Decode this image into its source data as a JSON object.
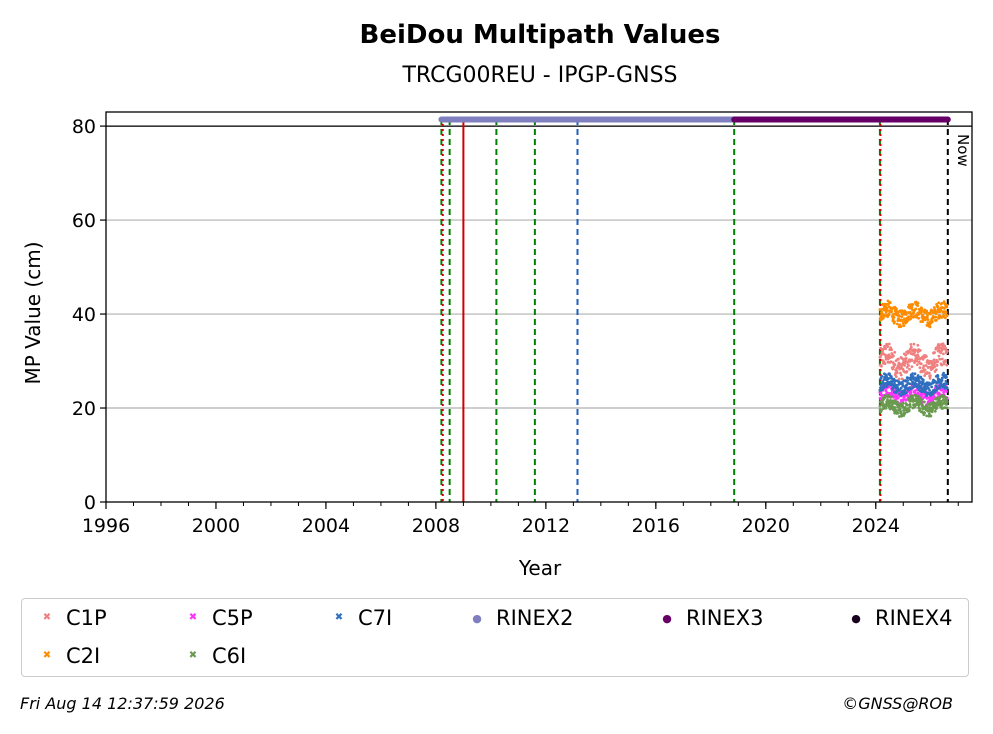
{
  "chart_data": {
    "type": "scatter",
    "title": "BeiDou Multipath Values",
    "subtitle": "TRCG00REU - IPGP-GNSS",
    "xlabel": "Year",
    "ylabel": "MP Value (cm)",
    "xlim": [
      1996,
      2027.5
    ],
    "ylim": [
      0,
      83
    ],
    "x_ticks": [
      "1996",
      "2000",
      "2004",
      "2008",
      "2012",
      "2016",
      "2020",
      "2024"
    ],
    "y_ticks": [
      "0",
      "20",
      "40",
      "60",
      "80"
    ],
    "grid": "horizontal",
    "reference_line_y": 80,
    "now_label": "Now",
    "now_x": 2026.62,
    "event_lines": [
      {
        "x": 2008.2,
        "color": "#008000",
        "style": "dashed"
      },
      {
        "x": 2008.25,
        "color": "#d00000",
        "style": "dotted"
      },
      {
        "x": 2008.5,
        "color": "#008000",
        "style": "dashed"
      },
      {
        "x": 2009.0,
        "color": "#d00000",
        "style": "solid"
      },
      {
        "x": 2010.2,
        "color": "#008000",
        "style": "dashed"
      },
      {
        "x": 2011.6,
        "color": "#008000",
        "style": "dashed"
      },
      {
        "x": 2013.15,
        "color": "#1f5fbf",
        "style": "dashed"
      },
      {
        "x": 2018.85,
        "color": "#008000",
        "style": "dashed"
      },
      {
        "x": 2024.15,
        "color": "#008000",
        "style": "dashed"
      },
      {
        "x": 2024.17,
        "color": "#d00000",
        "style": "dotted"
      }
    ],
    "rinex_bars": [
      {
        "name": "RINEX2",
        "start": 2008.2,
        "end": 2018.85,
        "color": "#7f7fbf"
      },
      {
        "name": "RINEX3",
        "start": 2018.85,
        "end": 2026.62,
        "color": "#660066"
      }
    ],
    "series": [
      {
        "name": "C1P",
        "color": "#f08080",
        "x_start": 2024.15,
        "x_end": 2026.6,
        "mean": 30,
        "spread": 2.5
      },
      {
        "name": "C2I",
        "color": "#ff8c00",
        "x_start": 2024.15,
        "x_end": 2026.6,
        "mean": 40,
        "spread": 1.8
      },
      {
        "name": "C5P",
        "color": "#ff33ff",
        "x_start": 2024.15,
        "x_end": 2026.6,
        "mean": 23,
        "spread": 1.5
      },
      {
        "name": "C6I",
        "color": "#6a9a50",
        "x_start": 2024.15,
        "x_end": 2026.6,
        "mean": 20.5,
        "spread": 1.5
      },
      {
        "name": "C7I",
        "color": "#2f6fbf",
        "x_start": 2024.15,
        "x_end": 2026.6,
        "mean": 25,
        "spread": 1.6
      }
    ]
  },
  "legend": {
    "items": [
      {
        "label": "C1P",
        "color": "#f08080",
        "marker": "x"
      },
      {
        "label": "C5P",
        "color": "#ff33ff",
        "marker": "x"
      },
      {
        "label": "C7I",
        "color": "#2f6fbf",
        "marker": "x"
      },
      {
        "label": "RINEX2",
        "color": "#7f7fbf",
        "marker": "dot"
      },
      {
        "label": "RINEX3",
        "color": "#660066",
        "marker": "dot"
      },
      {
        "label": "RINEX4",
        "color": "#1a0020",
        "marker": "dot"
      },
      {
        "label": "C2I",
        "color": "#ff8c00",
        "marker": "x"
      },
      {
        "label": "C6I",
        "color": "#6a9a50",
        "marker": "x"
      }
    ]
  },
  "footer": {
    "timestamp": "Fri Aug 14 12:37:59 2026",
    "credit": "©GNSS@ROB"
  }
}
